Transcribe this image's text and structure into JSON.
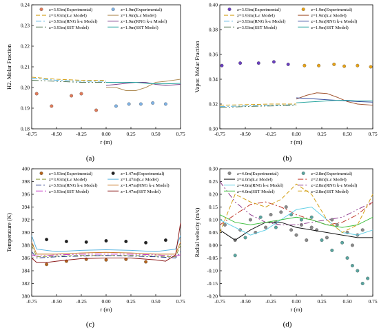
{
  "chart_data": [
    {
      "panel": "(a)",
      "type": "line",
      "xlabel": "r (m)",
      "ylabel": "H2. Molar Fraction",
      "xlim": [
        -0.75,
        0.75
      ],
      "ylim": [
        0.18,
        0.24
      ],
      "xticks": [
        "-0.75",
        "-0.50",
        "-0.25",
        "0.00",
        "0.25",
        "0.50",
        "0.75"
      ],
      "yticks": [
        "0.18",
        "0.19",
        "0.20",
        "0.21",
        "0.22",
        "0.23",
        "0.24"
      ],
      "legend_cols": 2,
      "series": [
        {
          "name": "z=3.93m(Experimental)",
          "kind": "scatter",
          "color": "#e07b5a",
          "x": [
            -0.7,
            -0.55,
            -0.35,
            -0.25,
            -0.1
          ],
          "y": [
            0.197,
            0.191,
            0.196,
            0.197,
            0.189
          ]
        },
        {
          "name": "z=1.9m(Experimental)",
          "kind": "scatter",
          "color": "#7fb2e5",
          "x": [
            0.1,
            0.23,
            0.35,
            0.47,
            0.6
          ],
          "y": [
            0.191,
            0.192,
            0.192,
            0.1925,
            0.192
          ]
        },
        {
          "name": "z=3.93m(k-ε Model)",
          "kind": "line",
          "color": "#d4a017",
          "dash": "6,3",
          "x": [
            -0.75,
            -0.5,
            -0.25,
            0.0
          ],
          "y": [
            0.205,
            0.204,
            0.2035,
            0.2035
          ]
        },
        {
          "name": "z=1.9m(k-ε Model)",
          "kind": "line",
          "color": "#b08d57",
          "dash": "",
          "x": [
            0.0,
            0.1,
            0.2,
            0.3,
            0.4,
            0.5,
            0.6,
            0.75
          ],
          "y": [
            0.2,
            0.2,
            0.1985,
            0.1985,
            0.2,
            0.2025,
            0.203,
            0.204
          ]
        },
        {
          "name": "z=3.93m(RNG k-ε Model)",
          "kind": "line",
          "color": "#58b4e0",
          "dash": "8,3,2,3",
          "x": [
            -0.75,
            -0.5,
            -0.25,
            0.0
          ],
          "y": [
            0.2045,
            0.2035,
            0.203,
            0.203
          ]
        },
        {
          "name": "z=1.9m(RNG k-ε Model)",
          "kind": "line",
          "color": "#7a3f8a",
          "dash": "",
          "x": [
            0.0,
            0.1,
            0.2,
            0.3,
            0.4,
            0.5,
            0.6,
            0.75
          ],
          "y": [
            0.201,
            0.2015,
            0.202,
            0.2025,
            0.2025,
            0.2015,
            0.201,
            0.2015
          ]
        },
        {
          "name": "z=3.93m(SST Model)",
          "kind": "line",
          "color": "#5a7d5a",
          "dash": "10,3,2,3,2,3",
          "x": [
            -0.75,
            -0.5,
            -0.25,
            0.0
          ],
          "y": [
            0.2035,
            0.203,
            0.2025,
            0.2025
          ]
        },
        {
          "name": "z=1.9m(SST Model)",
          "kind": "line",
          "color": "#2aa6a0",
          "dash": "",
          "x": [
            0.0,
            0.1,
            0.2,
            0.3,
            0.4,
            0.5,
            0.6,
            0.75
          ],
          "y": [
            0.2025,
            0.2025,
            0.2025,
            0.2025,
            0.202,
            0.2018,
            0.2018,
            0.202
          ]
        }
      ]
    },
    {
      "panel": "(b)",
      "type": "line",
      "xlabel": "r (m)",
      "ylabel": "Vapor. Molar Fraction",
      "xlim": [
        -0.75,
        0.75
      ],
      "ylim": [
        0.3,
        0.4
      ],
      "xticks": [
        "-0.75",
        "-0.50",
        "-0.25",
        "0.00",
        "0.25",
        "0.50",
        "0.75"
      ],
      "yticks": [
        "0.30",
        "0.32",
        "0.34",
        "0.36",
        "0.38",
        "0.40"
      ],
      "legend_cols": 2,
      "series": [
        {
          "name": "z=3.93m(Experimental)",
          "kind": "scatter",
          "color": "#6a3fc0",
          "x": [
            -0.73,
            -0.55,
            -0.37,
            -0.22,
            -0.08
          ],
          "y": [
            0.351,
            0.353,
            0.353,
            0.354,
            0.352
          ]
        },
        {
          "name": "z=1.9m(Experimental)",
          "kind": "scatter",
          "color": "#e8a317",
          "x": [
            0.08,
            0.22,
            0.37,
            0.47,
            0.6,
            0.73
          ],
          "y": [
            0.351,
            0.351,
            0.352,
            0.3505,
            0.351,
            0.35
          ]
        },
        {
          "name": "z=3.93m(k-ε Model)",
          "kind": "line",
          "color": "#d4a017",
          "dash": "6,3",
          "x": [
            -0.75,
            -0.5,
            -0.25,
            0.0
          ],
          "y": [
            0.319,
            0.3195,
            0.32,
            0.32
          ]
        },
        {
          "name": "z=1.9m(k-ε Model)",
          "kind": "line",
          "color": "#a0522d",
          "dash": "",
          "x": [
            0.0,
            0.1,
            0.2,
            0.3,
            0.4,
            0.5,
            0.6,
            0.75
          ],
          "y": [
            0.324,
            0.327,
            0.329,
            0.3285,
            0.3255,
            0.322,
            0.32,
            0.319
          ]
        },
        {
          "name": "z=3.93m(RNG k-ε Model)",
          "kind": "line",
          "color": "#58b4e0",
          "dash": "8,3,2,3",
          "x": [
            -0.75,
            -0.5,
            -0.25,
            0.0
          ],
          "y": [
            0.318,
            0.3185,
            0.319,
            0.3195
          ]
        },
        {
          "name": "z=1.9m(RNG k-ε Model)",
          "kind": "line",
          "color": "#3a4fa0",
          "dash": "",
          "x": [
            0.0,
            0.1,
            0.2,
            0.3,
            0.4,
            0.5,
            0.6,
            0.75
          ],
          "y": [
            0.325,
            0.3245,
            0.324,
            0.3235,
            0.323,
            0.3225,
            0.322,
            0.3215
          ]
        },
        {
          "name": "z=3.93m(SST Model)",
          "kind": "line",
          "color": "#5a7d5a",
          "dash": "10,3,2,3,2,3",
          "x": [
            -0.75,
            -0.5,
            -0.25,
            0.0
          ],
          "y": [
            0.317,
            0.318,
            0.3185,
            0.319
          ]
        },
        {
          "name": "z=1.9m(SST Model)",
          "kind": "line",
          "color": "#2aa6a0",
          "dash": "",
          "x": [
            0.0,
            0.1,
            0.2,
            0.3,
            0.4,
            0.5,
            0.6,
            0.75
          ],
          "y": [
            0.321,
            0.3215,
            0.322,
            0.3225,
            0.323,
            0.323,
            0.3225,
            0.3225
          ]
        }
      ]
    },
    {
      "panel": "(c)",
      "type": "line",
      "xlabel": "r (m)",
      "ylabel": "Temperature (K)",
      "xlim": [
        -0.75,
        0.75
      ],
      "ylim": [
        380,
        400
      ],
      "xticks": [
        "-0.75",
        "-0.50",
        "-0.25",
        "0.00",
        "0.25",
        "0.50",
        "0.75"
      ],
      "yticks": [
        "380",
        "382",
        "384",
        "386",
        "388",
        "390",
        "392",
        "394",
        "396",
        "398",
        "400"
      ],
      "legend_cols": 2,
      "series": [
        {
          "name": "z=3.93m(Experimental)",
          "kind": "scatter",
          "color": "#b5651d",
          "x": [
            -0.6,
            -0.4,
            -0.2,
            0.0,
            0.2,
            0.4
          ],
          "y": [
            385.0,
            385.5,
            385.8,
            385.7,
            385.8,
            385.4
          ]
        },
        {
          "name": "z=1.47m(Experimental)",
          "kind": "scatter",
          "color": "#222222",
          "x": [
            -0.6,
            -0.4,
            -0.2,
            0.0,
            0.2,
            0.4,
            0.6
          ],
          "y": [
            388.9,
            388.6,
            388.5,
            388.7,
            388.6,
            388.4,
            388.8
          ]
        },
        {
          "name": "z=3.93m(k-ε Model)",
          "kind": "line",
          "color": "#8a9a3a",
          "dash": "6,3",
          "x": [
            -0.75,
            -0.7,
            -0.5,
            -0.25,
            0.0,
            0.25,
            0.5,
            0.7,
            0.75
          ],
          "y": [
            388.0,
            386.2,
            386.3,
            386.4,
            386.4,
            386.4,
            386.3,
            386.2,
            388.0
          ]
        },
        {
          "name": "z=1.47m(k-ε Model)",
          "kind": "line",
          "color": "#58b4e0",
          "dash": "",
          "x": [
            -0.75,
            -0.7,
            -0.5,
            -0.25,
            0.0,
            0.25,
            0.5,
            0.7,
            0.75
          ],
          "y": [
            389.5,
            387.4,
            387.0,
            387.2,
            387.3,
            387.2,
            387.0,
            387.4,
            389.5
          ]
        },
        {
          "name": "z=3.93m(RNG k-ε Model)",
          "kind": "line",
          "color": "#2a3a8a",
          "dash": "8,3,2,3",
          "x": [
            -0.75,
            -0.7,
            -0.5,
            -0.25,
            0.0,
            0.25,
            0.5,
            0.7,
            0.75
          ],
          "y": [
            387.0,
            386.0,
            386.2,
            386.3,
            386.4,
            386.3,
            386.2,
            386.0,
            387.0
          ]
        },
        {
          "name": "z=1.47m(RNG k-ε Model)",
          "kind": "line",
          "color": "#c97c2a",
          "dash": "",
          "x": [
            -0.75,
            -0.7,
            -0.5,
            -0.25,
            0.0,
            0.25,
            0.5,
            0.7,
            0.75
          ],
          "y": [
            388.5,
            386.6,
            386.6,
            386.8,
            386.9,
            386.8,
            386.6,
            386.6,
            388.5
          ]
        },
        {
          "name": "z=3.93m(SST Model)",
          "kind": "line",
          "color": "#c73fc7",
          "dash": "10,3,2,3,2,3",
          "x": [
            -0.75,
            -0.7,
            -0.5,
            -0.25,
            0.0,
            0.25,
            0.5,
            0.7,
            0.75
          ],
          "y": [
            386.5,
            386.3,
            386.5,
            386.6,
            386.6,
            386.6,
            386.5,
            386.3,
            386.5
          ]
        },
        {
          "name": "z=1.47m(SST Model)",
          "kind": "line",
          "color": "#8b1a1a",
          "dash": "",
          "x": [
            -0.75,
            -0.7,
            -0.6,
            -0.5,
            -0.25,
            0.0,
            0.25,
            0.5,
            0.6,
            0.7,
            0.75
          ],
          "y": [
            386.0,
            385.3,
            385.3,
            385.5,
            385.9,
            386.0,
            386.0,
            385.7,
            385.5,
            386.5,
            391.5
          ]
        }
      ]
    },
    {
      "panel": "(d)",
      "type": "line",
      "xlabel": "r (m)",
      "ylabel": "Radial velocity (m/s)",
      "xlim": [
        -0.75,
        0.75
      ],
      "ylim": [
        -0.2,
        0.3
      ],
      "xticks": [
        "-0.75",
        "-0.50",
        "-0.25",
        "0.00",
        "0.25",
        "0.50",
        "0.75"
      ],
      "yticks": [
        "-0.20",
        "-0.15",
        "-0.10",
        "-0.05",
        "0.00",
        "0.05",
        "0.10",
        "0.15",
        "0.20",
        "0.25",
        "0.30"
      ],
      "legend_cols": 2,
      "series": [
        {
          "name": "z=4.0m(Experimental)",
          "kind": "scatter",
          "color": "#8a8a8a",
          "x": [
            -0.7,
            -0.6,
            -0.55,
            -0.45,
            -0.4,
            -0.3,
            -0.25,
            -0.2,
            -0.15,
            -0.1,
            -0.05,
            0.0,
            0.05,
            0.1,
            0.15,
            0.2,
            0.3,
            0.35,
            0.4,
            0.5,
            0.55,
            0.6,
            0.65
          ],
          "y": [
            0.08,
            0.02,
            0.06,
            0.1,
            0.05,
            0.07,
            0.12,
            0.09,
            0.13,
            0.15,
            0.06,
            0.04,
            0.08,
            0.02,
            0.07,
            0.06,
            0.03,
            0.1,
            0.08,
            0.05,
            0.0,
            0.04,
            0.06
          ]
        },
        {
          "name": "z=2.8m(Experimental)",
          "kind": "scatter",
          "color": "#5aa6a0",
          "x": [
            -0.6,
            -0.5,
            -0.35,
            -0.2,
            -0.05,
            0.05,
            0.15,
            0.25,
            0.35,
            0.45,
            0.5,
            0.55,
            0.6,
            0.65,
            0.7
          ],
          "y": [
            -0.04,
            0.03,
            0.11,
            0.07,
            0.12,
            0.1,
            0.11,
            0.02,
            -0.02,
            0.01,
            -0.05,
            -0.08,
            -0.1,
            -0.15,
            -0.13
          ]
        },
        {
          "name": "z=4.0m(k-ε Model)",
          "kind": "line",
          "color": "#111111",
          "dash": "",
          "x": [
            -0.75,
            -0.6,
            -0.45,
            -0.3,
            -0.15,
            0.0,
            0.15,
            0.3,
            0.45,
            0.6,
            0.75
          ],
          "y": [
            0.06,
            0.02,
            0.06,
            0.09,
            0.09,
            0.07,
            0.06,
            0.05,
            0.04,
            0.03,
            0.03
          ]
        },
        {
          "name": "z=2.8m(k-ε Model)",
          "kind": "line",
          "color": "#c0392b",
          "dash": "8,3,2,3",
          "x": [
            -0.75,
            -0.6,
            -0.45,
            -0.3,
            -0.15,
            0.0,
            0.15,
            0.3,
            0.45,
            0.6,
            0.75
          ],
          "y": [
            0.08,
            0.12,
            0.16,
            0.17,
            0.15,
            0.12,
            0.1,
            0.08,
            0.09,
            0.12,
            0.17
          ]
        },
        {
          "name": "z=4.0m(RNG k-ε Model)",
          "kind": "line",
          "color": "#62d0e6",
          "dash": "",
          "x": [
            -0.75,
            -0.6,
            -0.45,
            -0.3,
            -0.15,
            0.0,
            0.15,
            0.3,
            0.45,
            0.6,
            0.75
          ],
          "y": [
            0.1,
            0.07,
            0.04,
            0.06,
            0.1,
            0.14,
            0.15,
            0.1,
            0.05,
            0.04,
            0.06
          ]
        },
        {
          "name": "z=2.8m(RNG k-ε Model)",
          "kind": "line",
          "color": "#8e3a8e",
          "dash": "8,3,2,3,2,3",
          "x": [
            -0.75,
            -0.6,
            -0.45,
            -0.3,
            -0.15,
            0.0,
            0.15,
            0.3,
            0.45,
            0.6,
            0.75
          ],
          "y": [
            0.25,
            0.17,
            0.12,
            0.09,
            0.08,
            0.08,
            0.09,
            0.1,
            0.11,
            0.14,
            0.17
          ]
        },
        {
          "name": "z=4.0m(SST Model)",
          "kind": "line",
          "color": "#3fbf3f",
          "dash": "",
          "x": [
            -0.75,
            -0.6,
            -0.45,
            -0.3,
            -0.15,
            0.0,
            0.15,
            0.3,
            0.45,
            0.6,
            0.75
          ],
          "y": [
            0.12,
            0.09,
            0.08,
            0.09,
            0.1,
            0.11,
            0.1,
            0.08,
            0.07,
            0.08,
            0.11
          ]
        },
        {
          "name": "z=2.8m(SST Model)",
          "kind": "line",
          "color": "#d4a017",
          "dash": "6,3",
          "x": [
            -0.75,
            -0.6,
            -0.45,
            -0.3,
            -0.15,
            0.0,
            0.15,
            0.3,
            0.45,
            0.6,
            0.75
          ],
          "y": [
            0.05,
            0.2,
            0.17,
            0.15,
            0.18,
            0.24,
            0.2,
            0.1,
            0.05,
            0.08,
            0.2
          ]
        }
      ]
    }
  ]
}
